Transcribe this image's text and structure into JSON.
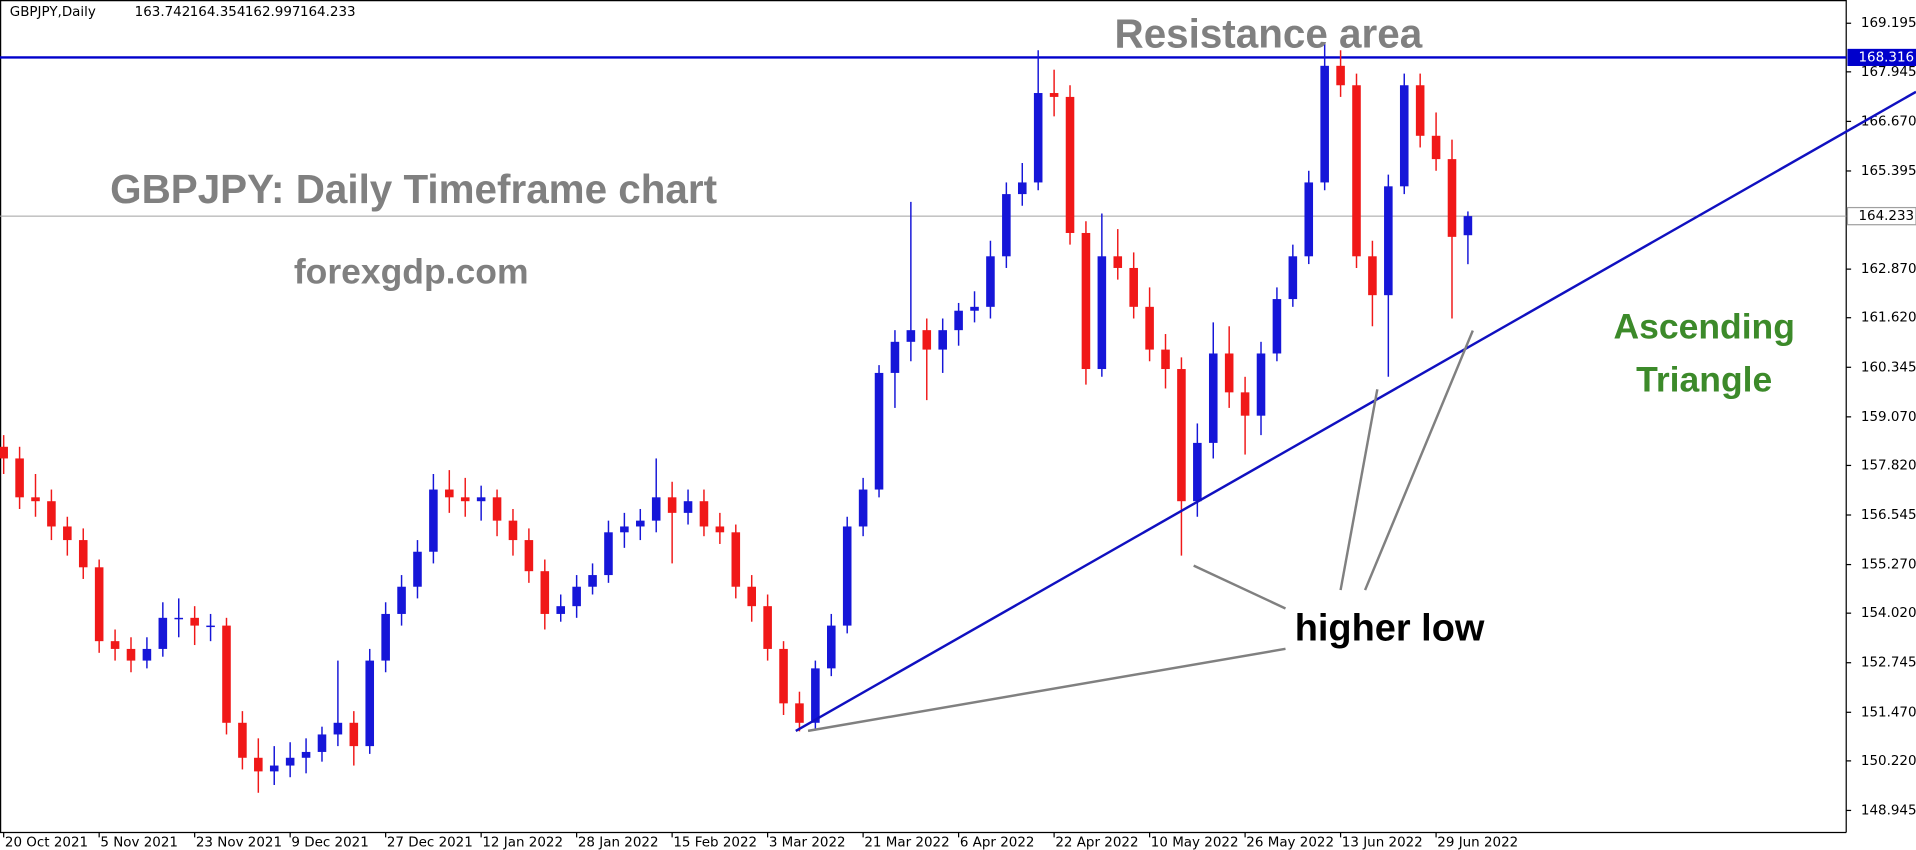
{
  "chart_data": {
    "type": "candlestick",
    "header": "GBPJPY,Daily",
    "title": "GBPJPY: Daily Timeframe chart",
    "subtitle": "forexgdp.com",
    "resistance_label": "Resistance area",
    "pattern": [
      "Ascending",
      "Triangle"
    ],
    "callout": "higher low",
    "up_color": "#1616d8",
    "down_color": "#f01818",
    "resistance": {
      "value": 168.316,
      "color": "#0000cc"
    },
    "last_price": 164.233,
    "ylim": [
      148.378,
      169.793
    ],
    "yticks": [
      169.195,
      167.945,
      {
        "value": 166.67,
        "label": "166.670"
      },
      165.395,
      {
        "value": 162.87,
        "label": "162.870"
      },
      {
        "value": 161.62,
        "label": "161.620"
      },
      160.345,
      {
        "value": 159.07,
        "label": "159.070"
      },
      {
        "value": 157.82,
        "label": "157.820"
      },
      156.545,
      {
        "value": 155.27,
        "label": "155.270"
      },
      {
        "value": 154.02,
        "label": "154.020"
      },
      152.745,
      {
        "value": 151.47,
        "label": "151.470"
      },
      {
        "value": 150.22,
        "label": "150.220"
      },
      148.945
    ],
    "categories": [
      "20 Oct 2021",
      null,
      null,
      null,
      null,
      null,
      "5 Nov 2021",
      null,
      null,
      null,
      null,
      null,
      "23 Nov 2021",
      null,
      null,
      null,
      null,
      null,
      "9 Dec 2021",
      null,
      null,
      null,
      null,
      null,
      "27 Dec 2021",
      null,
      null,
      null,
      null,
      null,
      "12 Jan 2022",
      null,
      null,
      null,
      null,
      null,
      "28 Jan 2022",
      null,
      null,
      null,
      null,
      null,
      "15 Feb 2022",
      null,
      null,
      null,
      null,
      null,
      "3 Mar 2022",
      null,
      null,
      null,
      null,
      null,
      "21 Mar 2022",
      null,
      null,
      null,
      null,
      null,
      "6 Apr 2022",
      null,
      null,
      null,
      null,
      null,
      "22 Apr 2022",
      null,
      null,
      null,
      null,
      null,
      "10 May 2022",
      null,
      null,
      null,
      null,
      null,
      "26 May 2022",
      null,
      null,
      null,
      null,
      null,
      "13 Jun 2022",
      null,
      null,
      null,
      null,
      null,
      "29 Jun 2022",
      null,
      null
    ],
    "candles": [
      [
        158.3,
        158.6,
        157.6,
        158.0
      ],
      [
        158.0,
        158.3,
        156.7,
        157.0
      ],
      [
        157.0,
        157.6,
        156.5,
        156.9
      ],
      [
        156.9,
        157.2,
        155.9,
        156.25
      ],
      [
        156.25,
        156.5,
        155.5,
        155.9
      ],
      [
        155.9,
        156.2,
        154.9,
        155.2
      ],
      [
        155.2,
        155.4,
        153.0,
        153.3
      ],
      [
        153.3,
        153.6,
        152.8,
        153.1
      ],
      [
        153.1,
        153.4,
        152.5,
        152.8
      ],
      [
        152.8,
        153.4,
        152.6,
        153.1
      ],
      [
        153.1,
        154.3,
        152.9,
        153.9
      ],
      [
        153.9,
        154.4,
        153.4,
        153.9
      ],
      [
        153.9,
        154.2,
        153.2,
        153.7
      ],
      [
        153.7,
        154.0,
        153.3,
        153.7
      ],
      [
        153.7,
        153.9,
        150.9,
        151.2
      ],
      [
        151.2,
        151.5,
        150.0,
        150.3
      ],
      [
        150.3,
        150.8,
        149.4,
        149.95
      ],
      [
        149.95,
        150.6,
        149.6,
        150.1
      ],
      [
        150.1,
        150.7,
        149.8,
        150.3
      ],
      [
        150.3,
        150.8,
        149.9,
        150.45
      ],
      [
        150.45,
        151.1,
        150.2,
        150.9
      ],
      [
        150.9,
        152.8,
        150.6,
        151.2
      ],
      [
        151.2,
        151.5,
        150.1,
        150.6
      ],
      [
        150.6,
        153.1,
        150.4,
        152.8
      ],
      [
        152.8,
        154.3,
        152.5,
        154.0
      ],
      [
        154.0,
        155.0,
        153.7,
        154.7
      ],
      [
        154.7,
        155.9,
        154.4,
        155.6
      ],
      [
        155.6,
        157.6,
        155.3,
        157.2
      ],
      [
        157.2,
        157.7,
        156.6,
        157.0
      ],
      [
        157.0,
        157.5,
        156.5,
        156.9
      ],
      [
        156.9,
        157.3,
        156.4,
        157.0
      ],
      [
        157.0,
        157.2,
        156.0,
        156.4
      ],
      [
        156.4,
        156.7,
        155.5,
        155.9
      ],
      [
        155.9,
        156.2,
        154.8,
        155.1
      ],
      [
        155.1,
        155.4,
        153.6,
        154.0
      ],
      [
        154.0,
        154.5,
        153.8,
        154.2
      ],
      [
        154.2,
        155.0,
        153.9,
        154.7
      ],
      [
        154.7,
        155.3,
        154.5,
        155.0
      ],
      [
        155.0,
        156.4,
        154.8,
        156.1
      ],
      [
        156.1,
        156.6,
        155.7,
        156.25
      ],
      [
        156.25,
        156.7,
        155.9,
        156.4
      ],
      [
        156.4,
        158.0,
        156.1,
        157.0
      ],
      [
        157.0,
        157.4,
        155.3,
        156.6
      ],
      [
        156.6,
        157.2,
        156.3,
        156.9
      ],
      [
        156.9,
        157.2,
        156.0,
        156.25
      ],
      [
        156.25,
        156.6,
        155.8,
        156.1
      ],
      [
        156.1,
        156.3,
        154.4,
        154.7
      ],
      [
        154.7,
        155.0,
        153.8,
        154.2
      ],
      [
        154.2,
        154.5,
        152.8,
        153.1
      ],
      [
        153.1,
        153.3,
        151.4,
        151.7
      ],
      [
        151.7,
        152.0,
        150.98,
        151.2
      ],
      [
        151.2,
        152.8,
        151.0,
        152.6
      ],
      [
        152.6,
        154.0,
        152.4,
        153.7
      ],
      [
        153.7,
        156.5,
        153.5,
        156.25
      ],
      [
        156.25,
        157.5,
        156.0,
        157.2
      ],
      [
        157.2,
        160.4,
        157.0,
        160.2
      ],
      [
        160.2,
        161.3,
        159.3,
        161.0
      ],
      [
        161.0,
        164.6,
        160.5,
        161.3
      ],
      [
        161.3,
        161.6,
        159.5,
        160.8
      ],
      [
        160.8,
        161.6,
        160.2,
        161.3
      ],
      [
        161.3,
        162.0,
        160.9,
        161.8
      ],
      [
        161.8,
        162.3,
        161.5,
        161.9
      ],
      [
        161.9,
        163.6,
        161.6,
        163.2
      ],
      [
        163.2,
        165.1,
        162.9,
        164.8
      ],
      [
        164.8,
        165.6,
        164.5,
        165.1
      ],
      [
        165.1,
        168.5,
        164.9,
        167.4
      ],
      [
        167.4,
        168.0,
        166.8,
        167.3
      ],
      [
        167.3,
        167.6,
        163.5,
        163.8
      ],
      [
        163.8,
        164.1,
        159.9,
        160.3
      ],
      [
        160.3,
        164.3,
        160.1,
        163.2
      ],
      [
        163.2,
        163.9,
        162.6,
        162.9
      ],
      [
        162.9,
        163.3,
        161.6,
        161.9
      ],
      [
        161.9,
        162.4,
        160.5,
        160.8
      ],
      [
        160.8,
        161.2,
        159.8,
        160.3
      ],
      [
        160.3,
        160.6,
        155.5,
        156.9
      ],
      [
        156.9,
        158.9,
        156.5,
        158.4
      ],
      [
        158.4,
        161.5,
        158.0,
        160.7
      ],
      [
        160.7,
        161.4,
        159.3,
        159.7
      ],
      [
        159.7,
        160.1,
        158.1,
        159.1
      ],
      [
        159.1,
        161.0,
        158.6,
        160.7
      ],
      [
        160.7,
        162.4,
        160.5,
        162.1
      ],
      [
        162.1,
        163.5,
        161.9,
        163.2
      ],
      [
        163.2,
        165.4,
        163.0,
        165.1
      ],
      [
        165.1,
        168.7,
        164.9,
        168.1
      ],
      [
        168.1,
        168.5,
        167.3,
        167.6
      ],
      [
        167.6,
        167.9,
        162.9,
        163.2
      ],
      [
        163.2,
        163.6,
        161.4,
        162.2
      ],
      [
        162.2,
        165.3,
        160.1,
        165.0
      ],
      [
        165.0,
        167.9,
        164.8,
        167.6
      ],
      [
        167.6,
        167.9,
        166.0,
        166.3
      ],
      [
        166.3,
        166.9,
        165.4,
        165.7
      ],
      [
        165.7,
        166.2,
        161.6,
        163.7
      ],
      [
        163.742,
        164.354,
        162.997,
        164.233
      ]
    ]
  }
}
